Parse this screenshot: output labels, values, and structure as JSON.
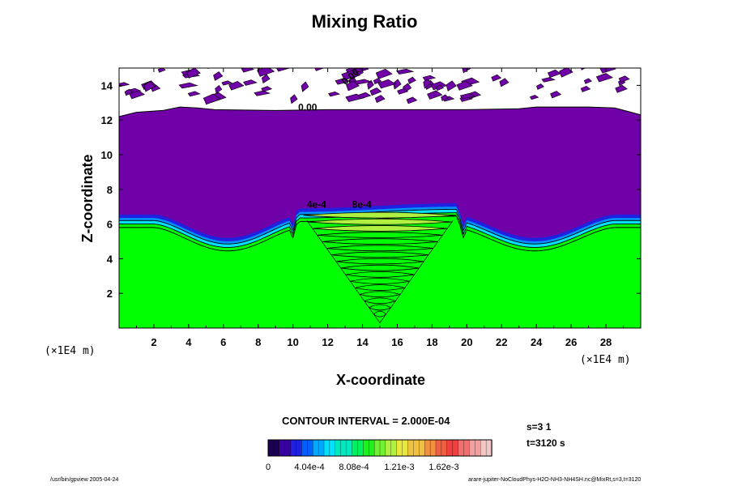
{
  "chart_data": {
    "type": "contour",
    "title": "Mixing Ratio",
    "xlabel": "X-coordinate",
    "ylabel": "Z-coordinate",
    "x_scale_label": "(×1E4 m)",
    "y_scale_label": "(×1E4 m)",
    "xlim": [
      0,
      30
    ],
    "ylim": [
      0,
      15
    ],
    "x_ticks": [
      2,
      4,
      6,
      8,
      10,
      12,
      14,
      16,
      18,
      20,
      22,
      24,
      26,
      28
    ],
    "y_ticks": [
      2,
      4,
      6,
      8,
      10,
      12,
      14
    ],
    "contour_interval_text": "CONTOUR INTERVAL = 2.000E-04",
    "contour_labels": [
      "0.00",
      "0.00",
      "4e-4",
      "8e-4"
    ],
    "colorbar": {
      "labels": [
        "0",
        "4.04e-4",
        "8.08e-4",
        "1.21e-3",
        "1.62e-3"
      ],
      "colors": [
        "#1a0050",
        "#3a00a0",
        "#2020e0",
        "#0060ff",
        "#00a8ff",
        "#00e0ff",
        "#00e8c0",
        "#00f060",
        "#20f020",
        "#70f030",
        "#b0f040",
        "#e8e840",
        "#f0c040",
        "#f09040",
        "#f06040",
        "#f04040",
        "#f07070",
        "#f0a0a0",
        "#f0c8c8"
      ]
    },
    "fields": {
      "dry_upper_color": "#7000a8",
      "moist_lower_color": "#00ff00",
      "boundary_color": "#1010c0"
    }
  },
  "annotations": {
    "s_text": "s=3 1",
    "t_text": "t=3120 s"
  },
  "footer": {
    "left": "/usr/bin/gpview 2005-04-24",
    "right": "arare-jupiter-NoCloudPhys-H2O-NH3-NH4SH.nc@MixRt,s=3,t=3120"
  }
}
